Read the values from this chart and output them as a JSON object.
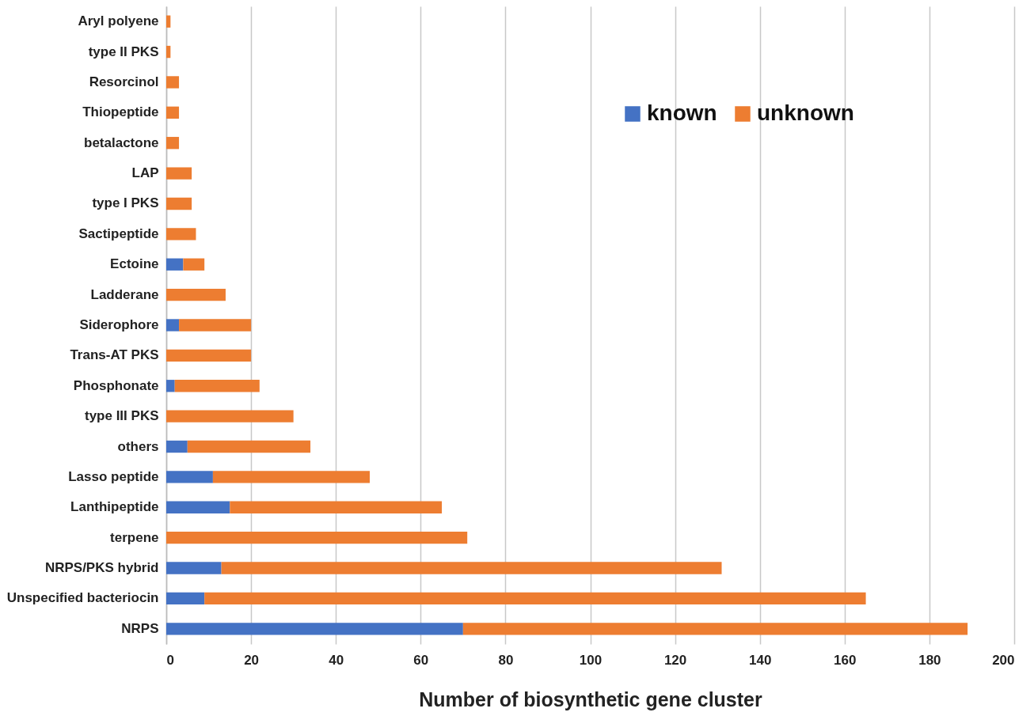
{
  "chart_data": {
    "type": "bar",
    "orientation": "horizontal",
    "stacked": true,
    "xlabel": "Number of biosynthetic gene cluster",
    "categories": [
      "Aryl polyene",
      "type II PKS",
      "Resorcinol",
      "Thiopeptide",
      "betalactone",
      "LAP",
      "type I PKS",
      "Sactipeptide",
      "Ectoine",
      "Ladderane",
      "Siderophore",
      "Trans-AT PKS",
      "Phosphonate",
      "type III PKS",
      "others",
      "Lasso peptide",
      "Lanthipeptide",
      "terpene",
      "NRPS/PKS hybrid",
      "Unspecified bacteriocin",
      "NRPS"
    ],
    "series": [
      {
        "name": "known",
        "color": "#4472c4",
        "values": [
          0,
          0,
          0,
          0,
          0,
          0,
          0,
          0,
          4,
          0,
          3,
          0,
          2,
          0,
          5,
          11,
          15,
          0,
          13,
          9,
          70
        ]
      },
      {
        "name": "unknown",
        "color": "#ed7d31",
        "values": [
          1,
          1,
          3,
          3,
          3,
          6,
          6,
          7,
          5,
          14,
          17,
          20,
          20,
          30,
          29,
          37,
          50,
          71,
          118,
          156,
          119
        ]
      }
    ],
    "xlim": [
      0,
      200
    ],
    "xticks": [
      0,
      20,
      40,
      60,
      80,
      100,
      120,
      140,
      160,
      180,
      200
    ],
    "grid": "x",
    "legend": "top right"
  }
}
